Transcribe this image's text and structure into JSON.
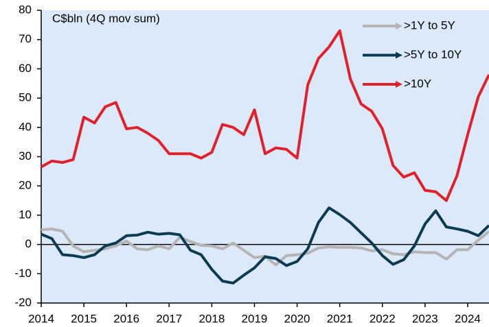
{
  "chart_data": {
    "type": "line",
    "annotation": "C$bln (4Q mov sum)",
    "x": [
      2014,
      2014.25,
      2014.5,
      2014.75,
      2015,
      2015.25,
      2015.5,
      2015.75,
      2016,
      2016.25,
      2016.5,
      2016.75,
      2017,
      2017.25,
      2017.5,
      2017.75,
      2018,
      2018.25,
      2018.5,
      2018.75,
      2019,
      2019.25,
      2019.5,
      2019.75,
      2020,
      2020.25,
      2020.5,
      2020.75,
      2021,
      2021.25,
      2021.5,
      2021.75,
      2022,
      2022.25,
      2022.5,
      2022.75,
      2023,
      2023.25,
      2023.5,
      2023.75,
      2024,
      2024.25,
      2024.5
    ],
    "series": [
      {
        "name": ">1Y to 5Y",
        "color": "#b4b4b4",
        "values": [
          5,
          5.3,
          4.5,
          -0.5,
          -2.5,
          -2,
          -1.5,
          -0.5,
          1.2,
          -1.5,
          -1.8,
          -0.5,
          -1.5,
          2.5,
          1,
          -0.3,
          -0.5,
          -1.5,
          0.5,
          -2,
          -4.5,
          -4,
          -7,
          -3.8,
          -3.5,
          -3,
          -1.2,
          -0.8,
          -1,
          -1,
          -1.2,
          -2.2,
          -1.8,
          -3.2,
          -3.5,
          -2.5,
          -2.8,
          -2.8,
          -5,
          -1.8,
          -1.8,
          1.5,
          4.5
        ]
      },
      {
        "name": ">5Y to 10Y",
        "color": "#0b3a53",
        "values": [
          3.5,
          2,
          -3.5,
          -3.8,
          -4.5,
          -3.5,
          -0.5,
          0.5,
          3,
          3.2,
          4.2,
          3.5,
          3.8,
          3.3,
          -2,
          -3.5,
          -8.5,
          -12.5,
          -13.2,
          -10.5,
          -8,
          -4.2,
          -4.8,
          -7.2,
          -5.8,
          -1.5,
          7.5,
          12.5,
          10.2,
          7.5,
          4,
          0.5,
          -3.8,
          -6.8,
          -5.2,
          -0.5,
          7,
          11.5,
          6,
          5.3,
          4.5,
          3,
          6.5
        ]
      },
      {
        "name": ">10Y",
        "color": "#e0202a",
        "values": [
          26.5,
          28.5,
          28,
          29,
          43.5,
          41.5,
          47,
          48.5,
          39.5,
          40,
          38,
          35.5,
          31,
          31,
          31,
          29.5,
          31.5,
          41,
          40,
          37.5,
          46,
          31,
          33,
          32.5,
          29.5,
          54.5,
          63.5,
          67.5,
          73,
          56.5,
          48,
          45.5,
          39.5,
          27,
          23,
          24.5,
          18.5,
          18,
          15,
          23.5,
          37.5,
          50.5,
          58
        ]
      }
    ],
    "xlim": [
      2014,
      2024.5
    ],
    "xticks": [
      2014,
      2015,
      2016,
      2017,
      2018,
      2019,
      2020,
      2021,
      2022,
      2023,
      2024
    ],
    "ylim": [
      -20,
      80
    ],
    "yticks": [
      -20,
      -10,
      0,
      10,
      20,
      30,
      40,
      50,
      60,
      70,
      80
    ],
    "background": "#dce9f8"
  }
}
